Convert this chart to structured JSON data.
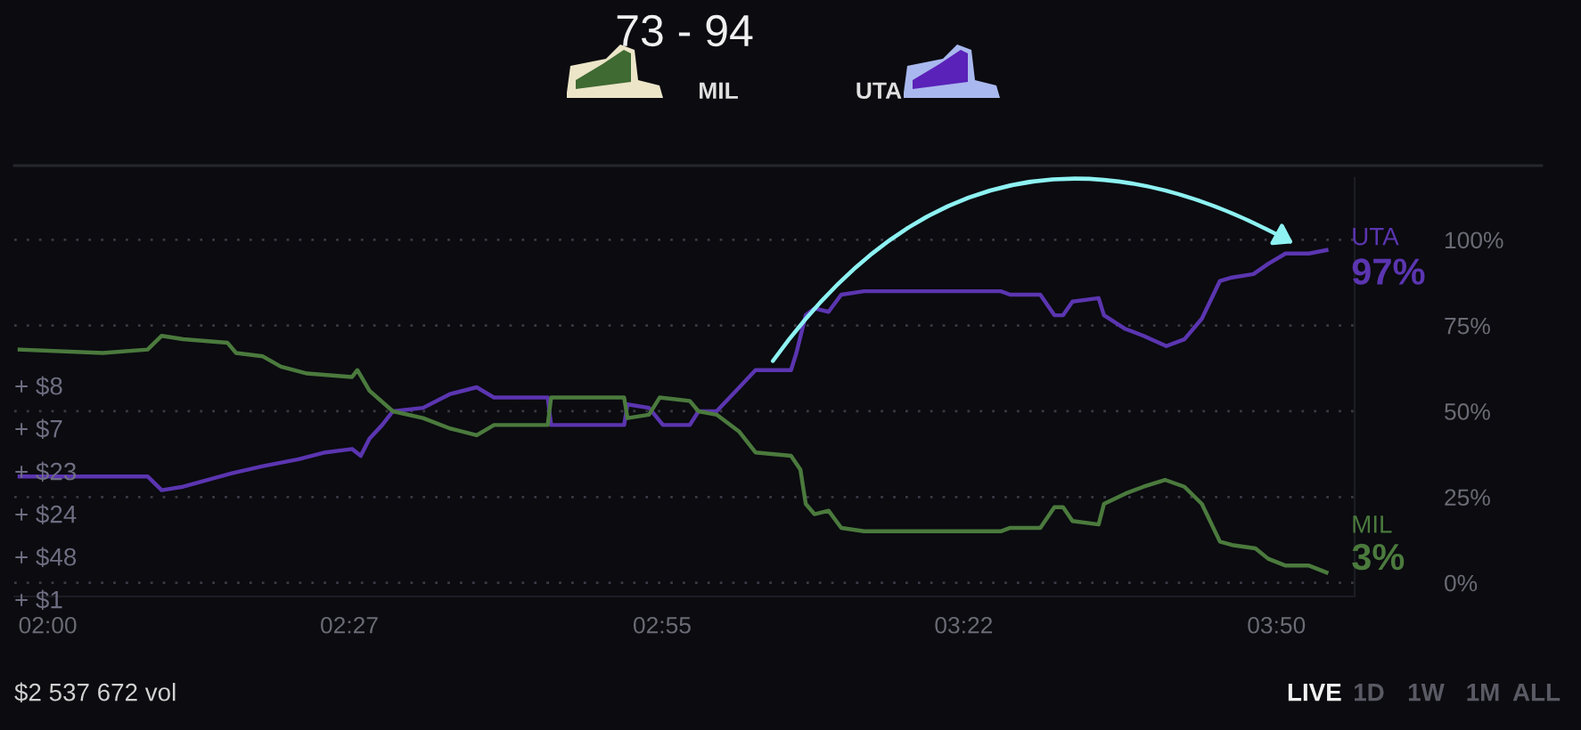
{
  "chart_data": {
    "type": "line",
    "title": "73 - 94",
    "series": [
      {
        "name": "UTA",
        "color": "#5b35b0",
        "x": [
          1.958,
          2.149,
          2.17,
          2.202,
          2.276,
          2.321,
          2.374,
          2.414,
          2.454,
          2.467,
          2.48,
          2.499,
          2.515,
          2.56,
          2.6,
          2.64,
          2.666,
          2.746,
          2.751,
          2.86,
          2.865,
          2.897,
          2.918,
          2.958,
          2.971,
          2.998,
          3.032,
          3.056,
          3.109,
          3.117,
          3.131,
          3.144,
          3.165,
          3.184,
          3.218,
          3.422,
          3.436,
          3.481,
          3.502,
          3.515,
          3.529,
          3.568,
          3.576,
          3.608,
          3.635,
          3.669,
          3.696,
          3.722,
          3.749,
          3.767,
          3.799,
          3.821,
          3.847,
          3.882,
          3.908
        ],
        "values": [
          31,
          31,
          27,
          28,
          32,
          34,
          36,
          38,
          39,
          37,
          42,
          46,
          50,
          51,
          55,
          57,
          54,
          54,
          46,
          46,
          52,
          51,
          46,
          46,
          50,
          50,
          57,
          62,
          62,
          67,
          78,
          80,
          79,
          84,
          85,
          85,
          84,
          84,
          78,
          78,
          82,
          83,
          78,
          74,
          72,
          69,
          71,
          77,
          88,
          89,
          90,
          93,
          96,
          96,
          97
        ]
      },
      {
        "name": "MIL",
        "color": "#4b7a3d",
        "x": [
          1.958,
          2.082,
          2.149,
          2.17,
          2.202,
          2.268,
          2.281,
          2.321,
          2.348,
          2.387,
          2.454,
          2.462,
          2.48,
          2.515,
          2.56,
          2.6,
          2.64,
          2.666,
          2.746,
          2.751,
          2.86,
          2.865,
          2.897,
          2.913,
          2.958,
          2.971,
          2.998,
          3.032,
          3.056,
          3.109,
          3.123,
          3.131,
          3.144,
          3.165,
          3.184,
          3.218,
          3.422,
          3.436,
          3.481,
          3.502,
          3.515,
          3.529,
          3.568,
          3.576,
          3.608,
          3.635,
          3.667,
          3.696,
          3.722,
          3.749,
          3.767,
          3.802,
          3.821,
          3.847,
          3.882,
          3.908
        ],
        "values": [
          68,
          67,
          68,
          72,
          71,
          70,
          67,
          66,
          63,
          61,
          60,
          62,
          56,
          50,
          48,
          45,
          43,
          46,
          46,
          54,
          54,
          48,
          49,
          54,
          53,
          50,
          49,
          44,
          38,
          37,
          33,
          23,
          20,
          21,
          16,
          15,
          15,
          16,
          16,
          22,
          22,
          18,
          17,
          23,
          26,
          28,
          30,
          28,
          23,
          12,
          11,
          10,
          7,
          5,
          5,
          3
        ]
      }
    ],
    "xlim": [
      1.95,
      3.95
    ],
    "xticks": [
      {
        "value": 2.0,
        "label": "02:00"
      },
      {
        "value": 2.45,
        "label": "02:27"
      },
      {
        "value": 2.9167,
        "label": "02:55"
      },
      {
        "value": 3.3667,
        "label": "03:22"
      },
      {
        "value": 3.8333,
        "label": "03:50"
      }
    ],
    "ylim": [
      -4,
      118
    ],
    "yticks": [
      {
        "value": 0,
        "label": "0%"
      },
      {
        "value": 25,
        "label": "25%"
      },
      {
        "value": 50,
        "label": "50%"
      },
      {
        "value": 75,
        "label": "75%"
      },
      {
        "value": 100,
        "label": "100%"
      }
    ],
    "grid": "y",
    "legend": false,
    "line_style": "solid",
    "annotations": [
      {
        "text": "97%",
        "x": 3.908,
        "y": 97
      },
      {
        "text": "3%",
        "x": 3.908,
        "y": 3
      },
      "MIL",
      "UTA",
      "+ $8",
      "+ $7",
      "+ $23",
      "+ $24",
      "+ $48",
      "+ $1",
      "$2 537 672 vol",
      "LIVE",
      "1D",
      "1W",
      "1M",
      "ALL"
    ]
  }
}
